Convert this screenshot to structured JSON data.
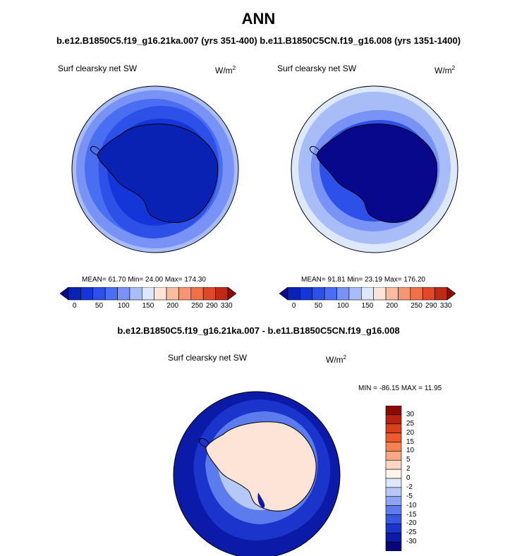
{
  "title": "ANN",
  "subtitle": "b.e12.B1850C5.f19_g16.21ka.007 (yrs 351-400) b.e11.B1850C5CN.f19_g16.008 (yrs 1351-1400)",
  "panels": [
    {
      "label": "Surf clearsky net SW",
      "units_base": "W/m",
      "units_exp": "2",
      "stats": "MEAN=  61.70  Min=  24.00  Max= 174.30"
    },
    {
      "label": "Surf clearsky net SW",
      "units_base": "W/m",
      "units_exp": "2",
      "stats": "MEAN=  91.81  Min=  23.19  Max= 176.20"
    }
  ],
  "main_colorbar": {
    "colors": [
      "#08088c",
      "#0a22b4",
      "#1436d8",
      "#2c50e8",
      "#4a6ef2",
      "#7892f6",
      "#a8bcf8",
      "#dde8fa",
      "#fde4d6",
      "#f8bca0",
      "#f49674",
      "#f07048",
      "#e04828",
      "#c02a14",
      "#8c0a04"
    ],
    "tick_labels": [
      "0",
      "50",
      "100",
      "150",
      "200",
      "250",
      "290",
      "330"
    ]
  },
  "diff": {
    "title": "b.e12.B1850C5.f19_g16.21ka.007 - b.e11.B1850C5CN.f19_g16.008",
    "label": "Surf clearsky net SW",
    "units_base": "W/m",
    "units_exp": "2",
    "stats": "MIN = -86.15 MAX =  11.95"
  },
  "diff_colorbar": {
    "colors_top_to_bottom": [
      "#8c0a04",
      "#b82210",
      "#d8401c",
      "#ee5a2c",
      "#f6804e",
      "#f8a884",
      "#fcd8c4",
      "#fff4ea",
      "#dde8fa",
      "#b6c8f8",
      "#8ca4f4",
      "#5c7cee",
      "#3656e4",
      "#1a34cc",
      "#0c1aa8",
      "#06067a"
    ],
    "tick_labels": [
      "30",
      "25",
      "20",
      "15",
      "10",
      "5",
      "2",
      "0",
      "-2",
      "-5",
      "-10",
      "-15",
      "-20",
      "-25",
      "-30"
    ]
  }
}
